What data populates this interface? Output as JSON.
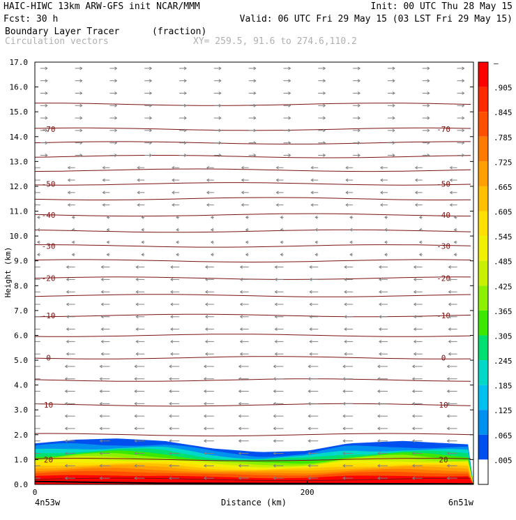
{
  "header": {
    "line1_left": "HAIC-HIWC 13km ARW-GFS init   NCAR/MMM",
    "line1_right": "Init: 00 UTC Thu 28 May 15",
    "line2_left": "Fcst:   30 h",
    "line2_right": "Valid: 06 UTC Fri 29 May 15 (03 LST Fri 29 May 15)",
    "field_name": "Boundary Layer Tracer",
    "field_units": "(fraction)",
    "vector_label": "Circulation vectors",
    "xy_label": "XY= 259.5, 91.6 to 274.6,110.2"
  },
  "colors": {
    "contour": "#7a1010",
    "vector": "#808080",
    "text": "#000000",
    "faded_text": "#b0b0b0"
  },
  "chart_data": {
    "type": "heatmap",
    "ylabel": "Height (km)",
    "xlabel": "Distance (km)",
    "x_endpoint_left": "4n53w",
    "x_endpoint_right": "6n51w",
    "ylim": [
      0,
      17
    ],
    "xlim": [
      0,
      322
    ],
    "yticks": [
      {
        "value": 0,
        "label": "0.0"
      },
      {
        "value": 1,
        "label": "1.0"
      },
      {
        "value": 2,
        "label": "2.0"
      },
      {
        "value": 3,
        "label": "3.0"
      },
      {
        "value": 4,
        "label": "4.0"
      },
      {
        "value": 5,
        "label": "5.0"
      },
      {
        "value": 6,
        "label": "6.0"
      },
      {
        "value": 7,
        "label": "7.0"
      },
      {
        "value": 8,
        "label": "8.0"
      },
      {
        "value": 9,
        "label": "9.0"
      },
      {
        "value": 10,
        "label": "10.0"
      },
      {
        "value": 11,
        "label": "11.0"
      },
      {
        "value": 12,
        "label": "12.0"
      },
      {
        "value": 13,
        "label": "13.0"
      },
      {
        "value": 14,
        "label": "14.0"
      },
      {
        "value": 15,
        "label": "15.0"
      },
      {
        "value": 16,
        "label": "16.0"
      },
      {
        "value": 17,
        "label": "17.0"
      }
    ],
    "xticks": [
      {
        "value": 0,
        "label": "0"
      },
      {
        "value": 200,
        "label": "200"
      }
    ],
    "colorbar": {
      "labels": [
        "–",
        ".905",
        ".845",
        ".785",
        ".725",
        ".665",
        ".605",
        ".545",
        ".485",
        ".425",
        ".365",
        ".305",
        ".245",
        ".185",
        ".125",
        ".065",
        ".005"
      ],
      "colors": [
        "#ff0000",
        "#ff2a00",
        "#ff5000",
        "#ff7a00",
        "#ff9f00",
        "#ffc000",
        "#ffe000",
        "#f0f000",
        "#c8f000",
        "#8cf000",
        "#3ce800",
        "#00e070",
        "#00d8c8",
        "#00c0f0",
        "#0090f0",
        "#0050f0",
        "#ffffff"
      ]
    },
    "temperature_contours": [
      {
        "height": 0.2,
        "label": ""
      },
      {
        "height": 1.0,
        "label": "20"
      },
      {
        "height": 2.0,
        "label": ""
      },
      {
        "height": 3.2,
        "label": "10"
      },
      {
        "height": 4.2,
        "label": ""
      },
      {
        "height": 5.1,
        "label": "0"
      },
      {
        "height": 6.0,
        "label": ""
      },
      {
        "height": 6.8,
        "label": "-10"
      },
      {
        "height": 7.6,
        "label": ""
      },
      {
        "height": 8.3,
        "label": "-20"
      },
      {
        "height": 9.0,
        "label": ""
      },
      {
        "height": 9.6,
        "label": "-30"
      },
      {
        "height": 10.2,
        "label": ""
      },
      {
        "height": 10.85,
        "label": "-40"
      },
      {
        "height": 11.5,
        "label": ""
      },
      {
        "height": 12.1,
        "label": "-50"
      },
      {
        "height": 12.65,
        "label": ""
      },
      {
        "height": 13.2,
        "label": ""
      },
      {
        "height": 13.75,
        "label": ""
      },
      {
        "height": 14.3,
        "label": "-70"
      },
      {
        "height": 15.3,
        "label": ""
      }
    ],
    "tracer_top_profile": [
      {
        "x": 0,
        "top": 1.65
      },
      {
        "x": 30,
        "top": 1.8
      },
      {
        "x": 60,
        "top": 1.85
      },
      {
        "x": 95,
        "top": 1.75
      },
      {
        "x": 130,
        "top": 1.45
      },
      {
        "x": 165,
        "top": 1.3
      },
      {
        "x": 200,
        "top": 1.35
      },
      {
        "x": 230,
        "top": 1.65
      },
      {
        "x": 270,
        "top": 1.75
      },
      {
        "x": 322,
        "top": 1.6
      }
    ],
    "grid": false
  }
}
